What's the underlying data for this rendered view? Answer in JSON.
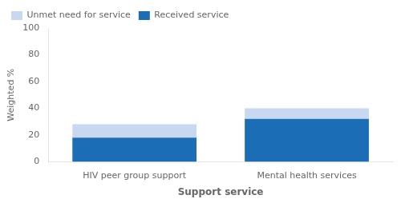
{
  "chart_data": {
    "type": "bar",
    "stacked": true,
    "categories": [
      "HIV peer group support",
      "Mental health services"
    ],
    "series": [
      {
        "name": "Received service",
        "color": "#1b6db5",
        "values": [
          18,
          32
        ]
      },
      {
        "name": "Unmet need for service",
        "color": "#c8d8f0",
        "values": [
          10,
          8
        ]
      }
    ],
    "xlabel": "Support service",
    "ylabel": "Weighted %",
    "ylim": [
      0,
      100
    ],
    "yticks": [
      0,
      20,
      40,
      60,
      80,
      100
    ],
    "grid": false,
    "legend": "upper left"
  }
}
